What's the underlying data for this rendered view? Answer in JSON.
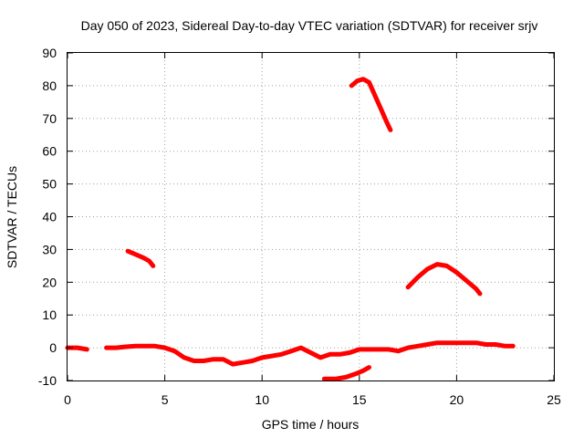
{
  "chart_data": {
    "type": "scatter",
    "title": "Day 050 of 2023, Sidereal Day-to-day VTEC variation (SDTVAR) for receiver srjv",
    "xlabel": "GPS time / hours",
    "ylabel": "SDTVAR / TECUs",
    "xlim": [
      0,
      25
    ],
    "ylim": [
      -10,
      90
    ],
    "xticks": [
      0,
      5,
      10,
      15,
      20,
      25
    ],
    "yticks": [
      -10,
      0,
      10,
      20,
      30,
      40,
      50,
      60,
      70,
      80,
      90
    ],
    "grid": true,
    "series": [
      {
        "name": "main-near-zero",
        "color": "#ff0000",
        "x": [
          0.0,
          0.5,
          1.0,
          1.5,
          2.0,
          2.5,
          3.0,
          3.5,
          4.0,
          4.5,
          5.0,
          5.5,
          6.0,
          6.5,
          7.0,
          7.5,
          8.0,
          8.5,
          9.0,
          9.5,
          10.0,
          10.5,
          11.0,
          11.5,
          12.0,
          12.5,
          13.0,
          13.5,
          14.0,
          14.5,
          15.0,
          15.5,
          16.0,
          16.5,
          17.0,
          17.5,
          18.0,
          18.5,
          19.0,
          19.5,
          20.0,
          20.5,
          21.0,
          21.5,
          22.0,
          22.5,
          22.9
        ],
        "y": [
          0.0,
          0.0,
          -0.5,
          null,
          0.0,
          0.0,
          0.3,
          0.5,
          0.5,
          0.5,
          0.0,
          -1.0,
          -3.0,
          -4.0,
          -4.0,
          -3.5,
          -3.5,
          -5.0,
          -4.5,
          -4.0,
          -3.0,
          -2.5,
          -2.0,
          -1.0,
          0.0,
          -1.5,
          -3.0,
          -2.0,
          -2.0,
          -1.5,
          -0.5,
          -0.5,
          -0.5,
          -0.5,
          -1.0,
          0.0,
          0.5,
          1.0,
          1.5,
          1.5,
          1.5,
          1.5,
          1.5,
          1.0,
          1.0,
          0.5,
          0.5
        ]
      },
      {
        "name": "low-segment",
        "color": "#ff0000",
        "x": [
          13.2,
          13.8,
          14.3,
          14.8,
          15.2,
          15.5
        ],
        "y": [
          -9.5,
          -9.5,
          -9.0,
          -8.0,
          -7.0,
          -6.0
        ]
      },
      {
        "name": "early-arc",
        "color": "#ff0000",
        "x": [
          3.1,
          3.5,
          3.9,
          4.2,
          4.4
        ],
        "y": [
          29.5,
          28.5,
          27.5,
          26.5,
          25.0
        ]
      },
      {
        "name": "peak-arc",
        "color": "#ff0000",
        "x": [
          14.6,
          14.9,
          15.2,
          15.5,
          15.8,
          16.1,
          16.4,
          16.6
        ],
        "y": [
          80.0,
          81.5,
          82.0,
          81.0,
          77.0,
          73.0,
          69.0,
          66.5
        ]
      },
      {
        "name": "late-arc",
        "color": "#ff0000",
        "x": [
          17.5,
          18.0,
          18.5,
          19.0,
          19.5,
          20.0,
          20.5,
          21.0,
          21.2
        ],
        "y": [
          18.5,
          21.5,
          24.0,
          25.5,
          25.0,
          23.0,
          20.5,
          18.0,
          16.5
        ]
      }
    ]
  }
}
